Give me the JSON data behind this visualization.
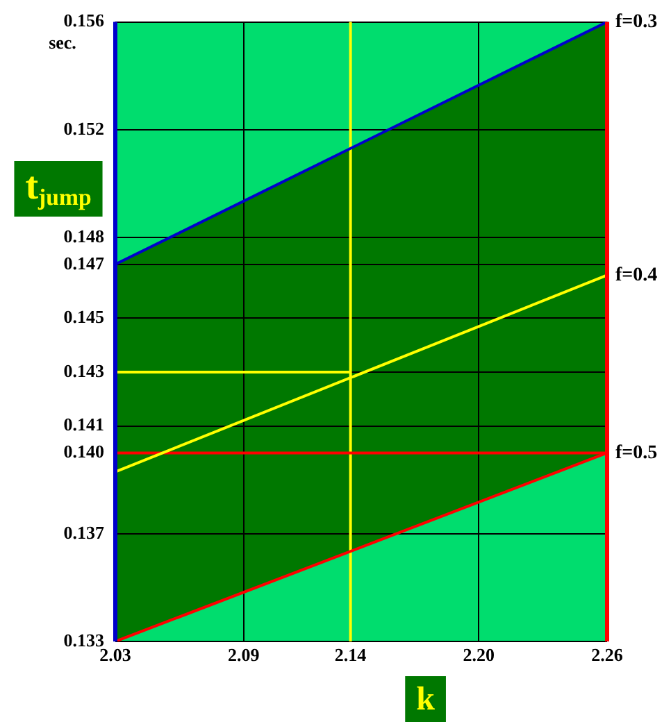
{
  "chart_data": {
    "type": "line",
    "xlabel": "k",
    "ylabel": "t$_{jump}$",
    "annotations": [
      "sec."
    ],
    "x": [
      2.03,
      2.26
    ],
    "xlim": [
      2.03,
      2.26
    ],
    "xticks": [
      2.03,
      2.09,
      2.14,
      {
        "value": 2.2,
        "label": "2.20"
      },
      2.26
    ],
    "ylim": [
      0.133,
      0.156
    ],
    "yticks": [
      0.133,
      0.137,
      {
        "value": 0.14,
        "label": "0.140"
      },
      0.141,
      0.143,
      0.145,
      0.147,
      0.148,
      0.152,
      0.156
    ],
    "series": [
      {
        "name": "f=0.3",
        "color": "#0000cc",
        "values": [
          0.147,
          0.156
        ]
      },
      {
        "name": "f=0.4",
        "color": "#ffff00",
        "values": [
          0.1393,
          0.1466
        ],
        "lower": [
          0.133,
          0.14
        ],
        "upper": [
          0.147,
          0.156
        ]
      },
      {
        "name": "f=0.5",
        "color": "#ff0000",
        "values": [
          0.133,
          0.14
        ]
      },
      {
        "color": "#ffff00",
        "x": [
          2.03,
          2.14
        ],
        "values": [
          0.143,
          0.143
        ]
      }
    ],
    "ref_lines": [
      {
        "axis": "x",
        "value": 2.14,
        "color": "#ffff00"
      },
      {
        "axis": "y",
        "value": 0.14,
        "color": "#ff0000"
      }
    ],
    "grid": true,
    "legend": false,
    "marker": "none",
    "line_style": "solid"
  }
}
